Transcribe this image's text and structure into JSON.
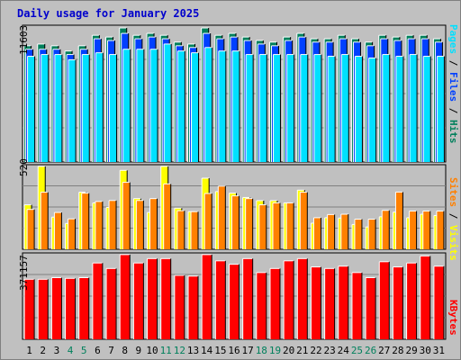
{
  "title": "Daily usage for January 2025",
  "colors": {
    "hits": "#00805c",
    "files": "#0040ff",
    "pages": "#00e0ff",
    "visits": "#ffff00",
    "sites": "#ff8000",
    "kbytes": "#ff0000",
    "weekday_label": "#000000",
    "weekend_label": "#00805c",
    "background": "#c0c0c0"
  },
  "legend": {
    "pages": "Pages",
    "files": "Files",
    "hits": "Hits",
    "sites": "Sites",
    "visits": "Visits",
    "kbytes": "KBytes",
    "separator": " / "
  },
  "chart_data": {
    "type": "bar",
    "categories": [
      "1",
      "2",
      "3",
      "4",
      "5",
      "6",
      "7",
      "8",
      "9",
      "10",
      "11",
      "12",
      "13",
      "14",
      "15",
      "16",
      "17",
      "18",
      "19",
      "20",
      "21",
      "22",
      "23",
      "24",
      "25",
      "26",
      "27",
      "28",
      "29",
      "30",
      "31"
    ],
    "weekend_days": [
      "4",
      "5",
      "11",
      "12",
      "18",
      "19",
      "25",
      "26"
    ],
    "panels": [
      {
        "name": "hits-files-pages",
        "max_label": "11603",
        "ylim": [
          0,
          11603
        ],
        "series": [
          {
            "name": "Hits",
            "values": [
              10060,
              10210,
              10060,
              9605,
              10060,
              10969,
              10817,
              11603,
              10969,
              11134,
              10969,
              10377,
              10210,
              11603,
              10969,
              11134,
              10817,
              10520,
              10377,
              10817,
              11134,
              10665,
              10665,
              10969,
              10665,
              10377,
              10969,
              10817,
              10969,
              10969,
              10665
            ]
          },
          {
            "name": "Files",
            "values": [
              9757,
              9757,
              9757,
              9303,
              9757,
              10665,
              10513,
              11134,
              10665,
              10817,
              10665,
              10060,
              9909,
              11134,
              10665,
              10817,
              10513,
              10210,
              10060,
              10513,
              10817,
              10377,
              10377,
              10665,
              10377,
              10060,
              10665,
              10513,
              10665,
              10665,
              10377
            ]
          },
          {
            "name": "Pages",
            "values": [
              9151,
              9303,
              9303,
              8848,
              9303,
              9453,
              9303,
              9757,
              9757,
              9757,
              10210,
              9605,
              9453,
              9909,
              9605,
              9605,
              9303,
              9303,
              9303,
              9303,
              9303,
              9303,
              9151,
              9303,
              9151,
              9000,
              9303,
              9151,
              9303,
              9151,
              9151
            ]
          }
        ]
      },
      {
        "name": "visits-sites",
        "max_label": "520",
        "ylim": [
          0,
          520
        ],
        "series": [
          {
            "name": "Visits",
            "values": [
              279,
              520,
              202,
              162,
              358,
              291,
              263,
              495,
              318,
              231,
              520,
              258,
              236,
              446,
              362,
              352,
              325,
              305,
              305,
              291,
              371,
              164,
              198,
              196,
              156,
              140,
              204,
              233,
              198,
              220,
              212
            ]
          },
          {
            "name": "Sites",
            "values": [
              250,
              358,
              231,
              191,
              352,
              300,
              306,
              420,
              306,
              318,
              410,
              242,
              236,
              350,
              396,
              335,
              318,
              279,
              291,
              291,
              358,
              198,
              218,
              220,
              189,
              189,
              244,
              359,
              240,
              240,
              240
            ]
          }
        ]
      },
      {
        "name": "kbytes",
        "max_label": "371157",
        "ylim": [
          0,
          371157
        ],
        "series": [
          {
            "name": "KBytes",
            "values": [
              263150,
              263150,
              270200,
              267150,
              270200,
              334500,
              310400,
              371157,
              334500,
              353800,
              353800,
              280050,
              277050,
              371157,
              343950,
              328800,
              353800,
              292550,
              310400,
              343950,
              353800,
              317250,
              310400,
              320600,
              292550,
              270200,
              340050,
              317250,
              334500,
              365300,
              320600
            ]
          }
        ]
      }
    ]
  }
}
